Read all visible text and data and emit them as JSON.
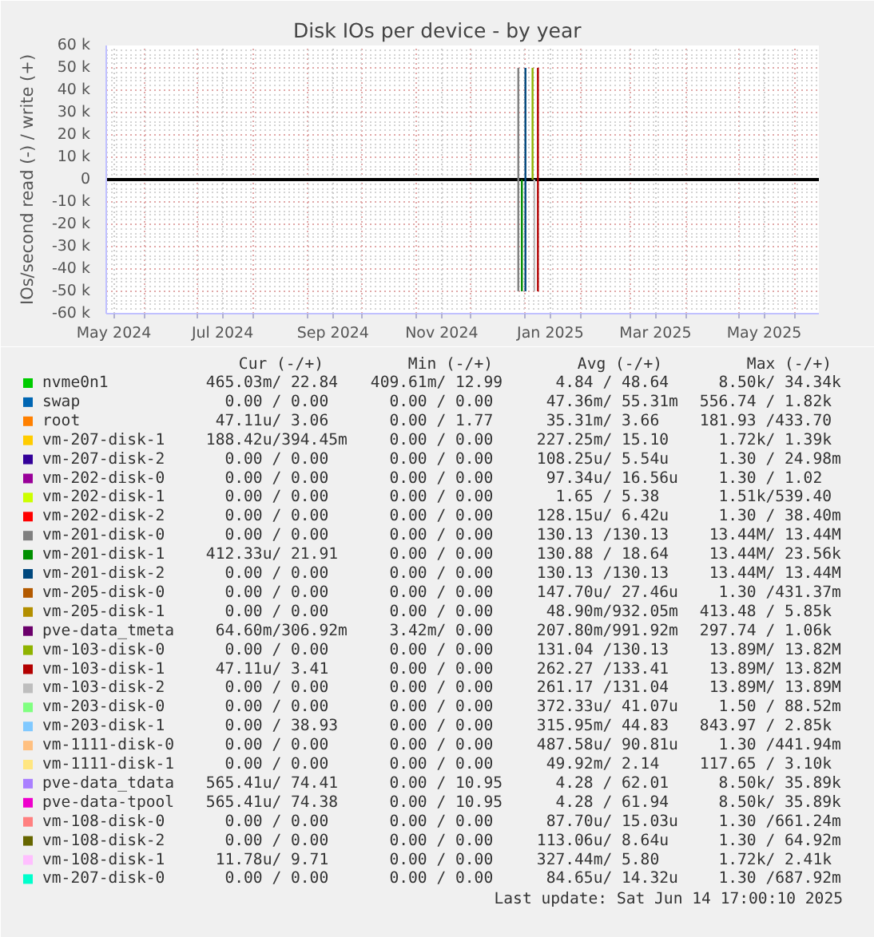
{
  "chart_data": {
    "type": "line",
    "title": "Disk IOs per device - by year",
    "ylabel": "IOs/second read (-) / write (+)",
    "xlim": [
      "2024-05-10T17:00",
      "2025-06-14T17:00"
    ],
    "xticks": [
      {
        "value": "2024-05-15",
        "label": "May 2024"
      },
      {
        "value": "2024-06-01",
        "label": null
      },
      {
        "value": "2024-07-01",
        "label": null
      },
      {
        "value": "2024-07-15",
        "label": "Jul 2024"
      },
      {
        "value": "2024-08-01",
        "label": null
      },
      {
        "value": "2024-09-01",
        "label": null
      },
      {
        "value": "2024-09-15",
        "label": "Sep 2024"
      },
      {
        "value": "2024-10-01",
        "label": null
      },
      {
        "value": "2024-11-01",
        "label": null
      },
      {
        "value": "2024-11-15",
        "label": "Nov 2024"
      },
      {
        "value": "2024-12-01",
        "label": null
      },
      {
        "value": "2025-01-01",
        "label": null
      },
      {
        "value": "2025-01-15",
        "label": "Jan 2025"
      },
      {
        "value": "2025-02-01",
        "label": null
      },
      {
        "value": "2025-03-01",
        "label": null
      },
      {
        "value": "2025-03-15",
        "label": "Mar 2025"
      },
      {
        "value": "2025-04-01",
        "label": null
      },
      {
        "value": "2025-05-01",
        "label": null
      },
      {
        "value": "2025-05-15",
        "label": "May 2025"
      },
      {
        "value": "2025-06-01",
        "label": null
      }
    ],
    "ylim": [
      -60000,
      60000
    ],
    "yticks": [
      {
        "value": -60000,
        "label": "-60 k"
      },
      {
        "value": -50000,
        "label": "-50 k"
      },
      {
        "value": -40000,
        "label": "-40 k"
      },
      {
        "value": -30000,
        "label": "-30 k"
      },
      {
        "value": -20000,
        "label": "-20 k"
      },
      {
        "value": -10000,
        "label": "-10 k"
      },
      0,
      {
        "value": 10000,
        "label": "10 k"
      },
      {
        "value": 20000,
        "label": "20 k"
      },
      {
        "value": 30000,
        "label": "30 k"
      },
      {
        "value": 40000,
        "label": "40 k"
      },
      {
        "value": 50000,
        "label": "50 k"
      },
      {
        "value": 60000,
        "label": "60 k"
      }
    ],
    "grid": true,
    "legend": "bottom",
    "line_style": "solid",
    "ref_lines": [
      {
        "axis": "y",
        "value": 0,
        "color": "#000000"
      }
    ],
    "series": [
      {
        "name": "nvme0n1",
        "color": "#00cc00",
        "values": [
          null
        ]
      },
      {
        "name": "swap",
        "color": "#0066b3",
        "values": [
          null
        ]
      },
      {
        "name": "root",
        "color": "#ff8000",
        "values": [
          null
        ]
      },
      {
        "name": "vm-207-disk-1",
        "color": "#ffcc00",
        "values": [
          null
        ]
      },
      {
        "name": "vm-207-disk-2",
        "color": "#330099",
        "values": [
          null
        ]
      },
      {
        "name": "vm-202-disk-0",
        "color": "#990099",
        "values": [
          null
        ]
      },
      {
        "name": "vm-202-disk-1",
        "color": "#ccff00",
        "values": [
          null
        ]
      },
      {
        "name": "vm-202-disk-2",
        "color": "#ff0000",
        "values": [
          null
        ]
      },
      {
        "name": "vm-201-disk-0",
        "color": "#808080",
        "x": [
          "2024-12-28",
          "2024-12-28"
        ],
        "values": [
          50000,
          -50000
        ]
      },
      {
        "name": "vm-201-disk-1",
        "color": "#008f00",
        "x": [
          "2024-12-30",
          "2024-12-30"
        ],
        "values": [
          0,
          -50000
        ]
      },
      {
        "name": "vm-201-disk-2",
        "color": "#00487d",
        "x": [
          "2025-01-01",
          "2025-01-01"
        ],
        "values": [
          50000,
          -50000
        ]
      },
      {
        "name": "vm-205-disk-0",
        "color": "#b35a00",
        "values": [
          null
        ]
      },
      {
        "name": "vm-205-disk-1",
        "color": "#b38f00",
        "values": [
          null
        ]
      },
      {
        "name": "pve-data_tmeta",
        "color": "#6b006b",
        "values": [
          null
        ]
      },
      {
        "name": "vm-103-disk-0",
        "color": "#8fb300",
        "x": [
          "2025-01-05",
          "2025-01-05"
        ],
        "values": [
          0,
          50000
        ]
      },
      {
        "name": "vm-103-disk-1",
        "color": "#b30000",
        "x": [
          "2025-01-08",
          "2025-01-08"
        ],
        "values": [
          50000,
          -50000
        ]
      },
      {
        "name": "vm-103-disk-2",
        "color": "#bebebe",
        "x": [
          "2025-01-06",
          "2025-01-06"
        ],
        "values": [
          0,
          -50000
        ]
      },
      {
        "name": "vm-203-disk-0",
        "color": "#80ff80",
        "values": [
          null
        ]
      },
      {
        "name": "vm-203-disk-1",
        "color": "#80c9ff",
        "values": [
          null
        ]
      },
      {
        "name": "vm-1111-disk-0",
        "color": "#ffc080",
        "values": [
          null
        ]
      },
      {
        "name": "vm-1111-disk-1",
        "color": "#ffe680",
        "values": [
          null
        ]
      },
      {
        "name": "pve-data_tdata",
        "color": "#aa80ff",
        "values": [
          null
        ]
      },
      {
        "name": "pve-data-tpool",
        "color": "#ee00cc",
        "values": [
          null
        ]
      },
      {
        "name": "vm-108-disk-0",
        "color": "#ff8080",
        "values": [
          null
        ]
      },
      {
        "name": "vm-108-disk-2",
        "color": "#666600",
        "values": [
          null
        ]
      },
      {
        "name": "vm-108-disk-1",
        "color": "#ffbfff",
        "values": [
          null
        ]
      },
      {
        "name": "vm-207-disk-0",
        "color": "#00ffcc",
        "values": [
          null
        ]
      }
    ],
    "annotations": [
      "Cur (-/+)",
      "Min (-/+)",
      "Avg (-/+)",
      "Max (-/+)",
      "465.03m/ 22.84",
      "409.61m/ 12.99",
      "4.84 / 48.64",
      "8.50k/ 34.34k",
      "0.00 /  0.00",
      "0.00 /  0.00",
      "47.36m/ 55.31m",
      "556.74 /  1.82k",
      "47.11u/  3.06",
      "0.00 /  1.77",
      "35.31m/  3.66",
      "181.93 /433.70",
      "188.42u/394.45m",
      "0.00 /  0.00",
      "227.25m/ 15.10",
      "1.72k/  1.39k",
      "0.00 /  0.00",
      "0.00 /  0.00",
      "108.25u/  5.54u",
      "1.30 / 24.98m",
      "0.00 /  0.00",
      "0.00 /  0.00",
      "97.34u/ 16.56u",
      "1.30 /  1.02",
      "0.00 /  0.00",
      "0.00 /  0.00",
      "1.65 /  5.38",
      "1.51k/539.40",
      "0.00 /  0.00",
      "0.00 /  0.00",
      "128.15u/  6.42u",
      "1.30 / 38.40m",
      "0.00 /  0.00",
      "0.00 /  0.00",
      "130.13 /130.13",
      "13.44M/ 13.44M",
      "412.33u/ 21.91",
      "0.00 /  0.00",
      "130.88 / 18.64",
      "13.44M/ 23.56k",
      "0.00 /  0.00",
      "0.00 /  0.00",
      "130.13 /130.13",
      "13.44M/ 13.44M",
      "0.00 /  0.00",
      "0.00 /  0.00",
      "147.70u/ 27.46u",
      "1.30 /431.37m",
      "0.00 /  0.00",
      "0.00 /  0.00",
      "48.90m/932.05m",
      "413.48 /  5.85k",
      "64.60m/306.92m",
      "3.42m/  0.00",
      "207.80m/991.92m",
      "297.74 /  1.06k",
      "0.00 /  0.00",
      "0.00 /  0.00",
      "131.04 /130.13",
      "13.89M/ 13.82M",
      "47.11u/  3.41",
      "0.00 /  0.00",
      "262.27 /133.41",
      "13.89M/ 13.82M",
      "0.00 /  0.00",
      "0.00 /  0.00",
      "261.17 /131.04",
      "13.89M/ 13.89M",
      "0.00 /  0.00",
      "0.00 /  0.00",
      "372.33u/ 41.07u",
      "1.50 / 88.52m",
      "0.00 / 38.93",
      "0.00 /  0.00",
      "315.95m/ 44.83",
      "843.97 /  2.85k",
      "0.00 /  0.00",
      "0.00 /  0.00",
      "487.58u/ 90.81u",
      "1.30 /441.94m",
      "0.00 /  0.00",
      "0.00 /  0.00",
      "49.92m/  2.14",
      "117.65 /  3.10k",
      "565.41u/ 74.41",
      "0.00 / 10.95",
      "4.28 / 62.01",
      "8.50k/ 35.89k",
      "565.41u/ 74.38",
      "0.00 / 10.95",
      "4.28 / 61.94",
      "8.50k/ 35.89k",
      "0.00 /  0.00",
      "0.00 /  0.00",
      "87.70u/ 15.03u",
      "1.30 /661.24m",
      "0.00 /  0.00",
      "0.00 /  0.00",
      "113.06u/  8.64u",
      "1.30 / 64.92m",
      "11.78u/  9.71",
      "0.00 /  0.00",
      "327.44m/  5.80",
      "1.72k/  2.41k",
      "0.00 /  0.00",
      "0.00 /  0.00",
      "84.65u/ 14.32u",
      "1.30 /687.92m",
      "Last update: Sat Jun 14 17:00:10 2025"
    ]
  }
}
